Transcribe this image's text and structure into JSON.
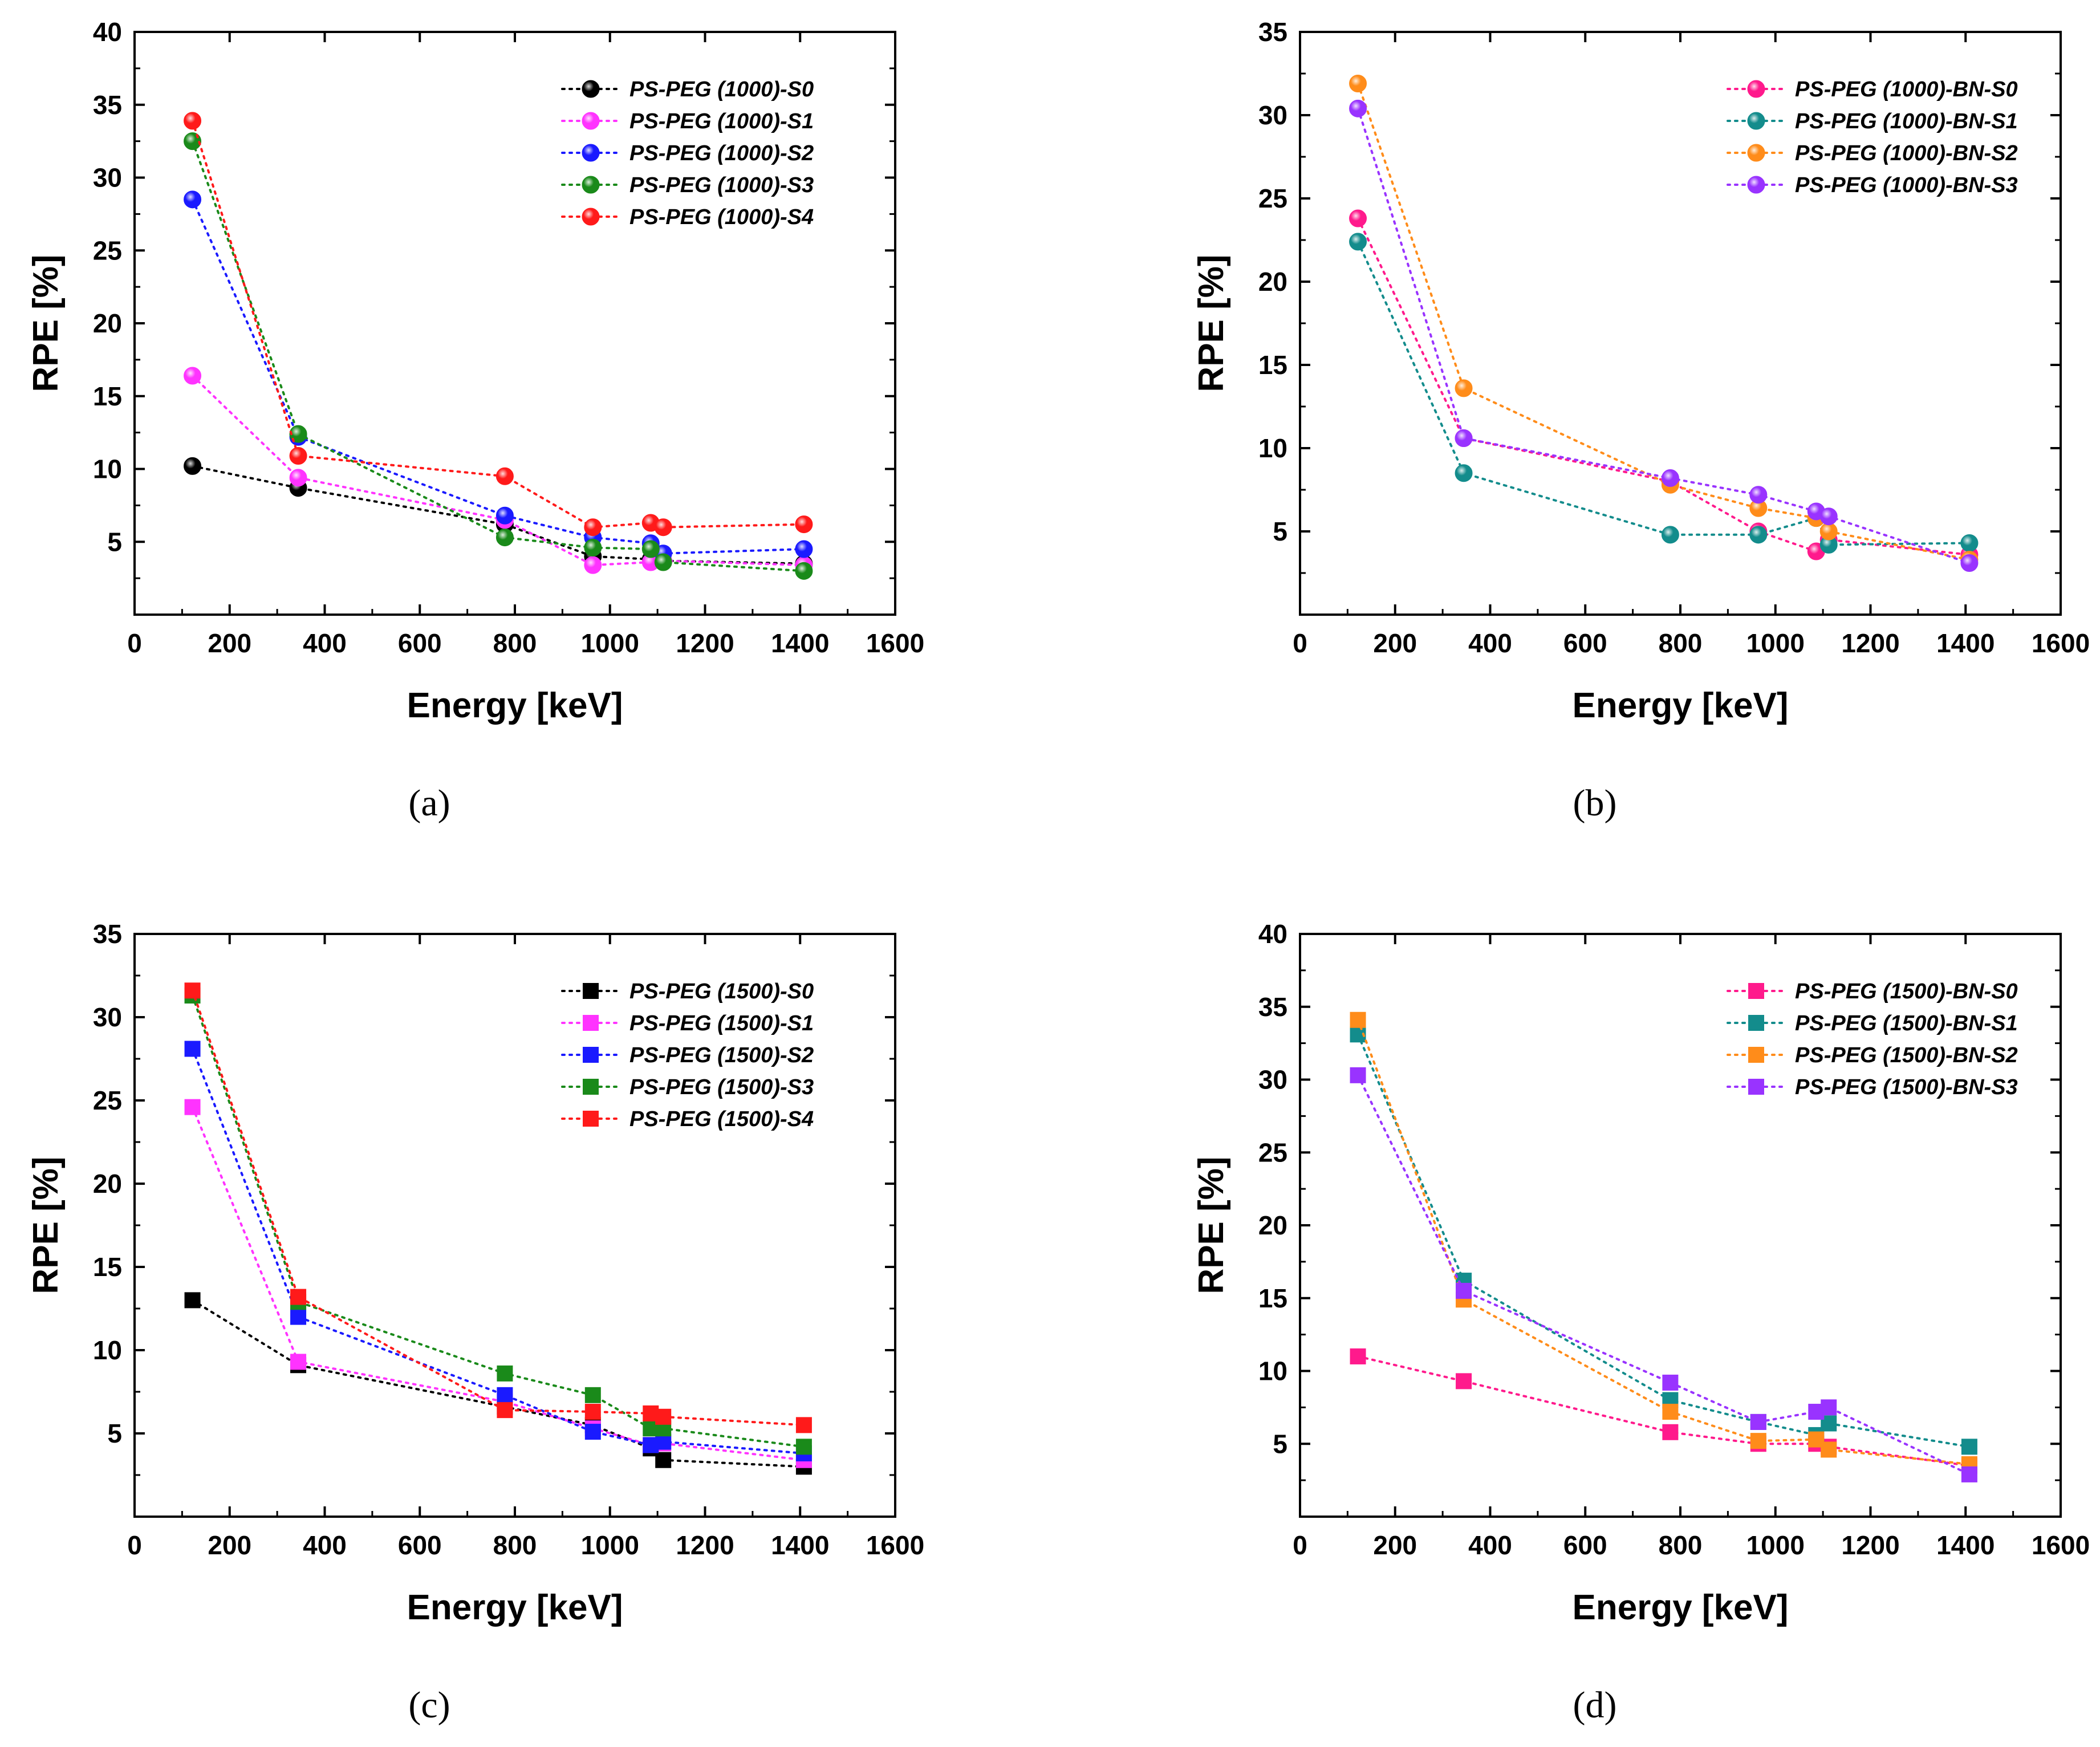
{
  "chart_data": [
    {
      "type": "scatter",
      "panel": "(a)",
      "xlabel": "Energy [keV]",
      "ylabel": "RPE [%]",
      "xlim": [
        0,
        1600
      ],
      "ylim": [
        0,
        40
      ],
      "xticks": [
        0,
        200,
        400,
        600,
        800,
        1000,
        1200,
        1400,
        1600
      ],
      "yticks": [
        5,
        10,
        15,
        20,
        25,
        30,
        35,
        40
      ],
      "grid": false,
      "legend": "top-right",
      "marker": "sphere",
      "line_style": "dotted",
      "x": [
        121.8,
        344.3,
        778.9,
        964.1,
        1085.8,
        1112.1,
        1408.0
      ],
      "series": [
        {
          "name": "PS-PEG (1000)-S0",
          "color": "#000000",
          "values": [
            10.2,
            8.7,
            6.2,
            4.0,
            3.8,
            3.7,
            3.5
          ]
        },
        {
          "name": "PS-PEG (1000)-S1",
          "color": "#ff33ff",
          "values": [
            16.4,
            9.4,
            6.5,
            3.4,
            3.6,
            3.7,
            3.4
          ]
        },
        {
          "name": "PS-PEG (1000)-S2",
          "color": "#1a1aff",
          "values": [
            28.5,
            12.2,
            6.8,
            5.3,
            4.9,
            4.2,
            4.5
          ]
        },
        {
          "name": "PS-PEG (1000)-S3",
          "color": "#1a8a1a",
          "values": [
            32.5,
            12.4,
            5.3,
            4.6,
            4.5,
            3.6,
            3.0
          ]
        },
        {
          "name": "PS-PEG (1000)-S4",
          "color": "#ff1a1a",
          "values": [
            33.9,
            10.9,
            9.5,
            6.0,
            6.3,
            6.0,
            6.2
          ]
        }
      ]
    },
    {
      "type": "scatter",
      "panel": "(b)",
      "xlabel": "Energy [keV]",
      "ylabel": "RPE [%]",
      "xlim": [
        0,
        1600
      ],
      "ylim": [
        0,
        35
      ],
      "xticks": [
        0,
        200,
        400,
        600,
        800,
        1000,
        1200,
        1400,
        1600
      ],
      "yticks": [
        5,
        10,
        15,
        20,
        25,
        30,
        35
      ],
      "grid": false,
      "legend": "top-right",
      "marker": "sphere",
      "line_style": "dotted",
      "x": [
        121.8,
        344.3,
        778.9,
        964.1,
        1085.8,
        1112.1,
        1408.0
      ],
      "series": [
        {
          "name": "PS-PEG (1000)-BN-S0",
          "color": "#ff1a8c",
          "values": [
            23.8,
            10.6,
            8.0,
            5.0,
            3.8,
            4.5,
            3.6
          ]
        },
        {
          "name": "PS-PEG (1000)-BN-S1",
          "color": "#138c8c",
          "values": [
            22.4,
            8.5,
            4.8,
            4.8,
            5.8,
            4.2,
            4.3
          ]
        },
        {
          "name": "PS-PEG (1000)-BN-S2",
          "color": "#ff8c1a",
          "values": [
            31.9,
            13.6,
            7.8,
            6.4,
            5.8,
            5.0,
            3.3
          ]
        },
        {
          "name": "PS-PEG (1000)-BN-S3",
          "color": "#9933ff",
          "values": [
            30.4,
            10.6,
            8.2,
            7.2,
            6.2,
            5.9,
            3.1
          ]
        }
      ]
    },
    {
      "type": "scatter",
      "panel": "(c)",
      "xlabel": "Energy [keV]",
      "ylabel": "RPE [%]",
      "xlim": [
        0,
        1600
      ],
      "ylim": [
        0,
        35
      ],
      "xticks": [
        0,
        200,
        400,
        600,
        800,
        1000,
        1200,
        1400,
        1600
      ],
      "yticks": [
        5,
        10,
        15,
        20,
        25,
        30,
        35
      ],
      "grid": false,
      "legend": "top-right",
      "marker": "square",
      "line_style": "dotted",
      "x": [
        121.8,
        344.3,
        778.9,
        964.1,
        1085.8,
        1112.1,
        1408.0
      ],
      "series": [
        {
          "name": "PS-PEG (1500)-S0",
          "color": "#000000",
          "values": [
            13.0,
            9.1,
            6.6,
            5.5,
            4.1,
            3.4,
            3.0
          ]
        },
        {
          "name": "PS-PEG (1500)-S1",
          "color": "#ff33ff",
          "values": [
            24.6,
            9.3,
            6.9,
            5.3,
            4.3,
            4.4,
            3.4
          ]
        },
        {
          "name": "PS-PEG (1500)-S2",
          "color": "#1a1aff",
          "values": [
            28.1,
            12.0,
            7.3,
            5.1,
            4.3,
            4.5,
            3.8
          ]
        },
        {
          "name": "PS-PEG (1500)-S3",
          "color": "#1a8a1a",
          "values": [
            31.3,
            12.9,
            8.6,
            7.3,
            5.3,
            5.3,
            4.2
          ]
        },
        {
          "name": "PS-PEG (1500)-S4",
          "color": "#ff1a1a",
          "values": [
            31.6,
            13.2,
            6.4,
            6.3,
            6.2,
            6.0,
            5.5
          ]
        }
      ]
    },
    {
      "type": "scatter",
      "panel": "(d)",
      "xlabel": "Energy [keV]",
      "ylabel": "RPE [%]",
      "xlim": [
        0,
        1600
      ],
      "ylim": [
        0,
        40
      ],
      "xticks": [
        0,
        200,
        400,
        600,
        800,
        1000,
        1200,
        1400,
        1600
      ],
      "yticks": [
        5,
        10,
        15,
        20,
        25,
        30,
        35,
        40
      ],
      "grid": false,
      "legend": "top-right",
      "marker": "square",
      "line_style": "dotted",
      "x": [
        121.8,
        344.3,
        778.9,
        964.1,
        1085.8,
        1112.1,
        1408.0
      ],
      "series": [
        {
          "name": "PS-PEG (1500)-BN-S0",
          "color": "#ff1a8c",
          "values": [
            11.0,
            9.3,
            5.8,
            5.0,
            5.0,
            4.8,
            3.5
          ]
        },
        {
          "name": "PS-PEG (1500)-BN-S1",
          "color": "#138c8c",
          "values": [
            33.1,
            16.2,
            8.0,
            6.5,
            5.6,
            6.4,
            4.8
          ]
        },
        {
          "name": "PS-PEG (1500)-BN-S2",
          "color": "#ff8c1a",
          "values": [
            34.1,
            14.9,
            7.2,
            5.2,
            5.3,
            4.6,
            3.6
          ]
        },
        {
          "name": "PS-PEG (1500)-BN-S3",
          "color": "#9933ff",
          "values": [
            30.3,
            15.5,
            9.2,
            6.5,
            7.2,
            7.5,
            2.9
          ]
        }
      ]
    }
  ]
}
